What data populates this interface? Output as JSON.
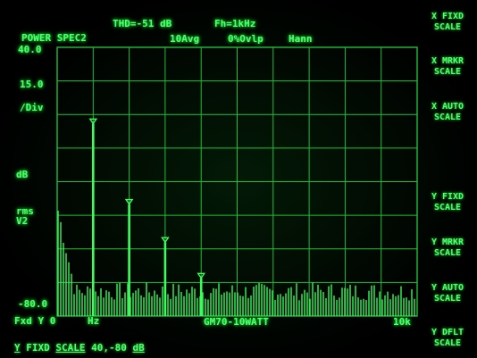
{
  "header": {
    "thd": "THD=-51 dB",
    "fh": "Fh=1kHz",
    "title": "POWER SPEC2",
    "avg": "10Avg",
    "overlap": "0%Ovlp",
    "window": "Hann"
  },
  "yaxis": {
    "top": "40.0",
    "scale_value": "15.0",
    "per_div": "/Div",
    "unit": "dB",
    "rms": "rms",
    "v2": "V2",
    "bottom": "-80.0"
  },
  "xaxis": {
    "left_label": "Fxd Y 0",
    "left_unit": "Hz",
    "center": "GM70-10WATT",
    "right": "10k"
  },
  "status": {
    "y": "Y",
    "fixd": "FIXD",
    "scale": "SCALE",
    "range": "40,-80",
    "db": "dB"
  },
  "softkeys": [
    {
      "line1": "X FIXD",
      "line2": "SCALE"
    },
    {
      "line1": "X MRKR",
      "line2": "SCALE"
    },
    {
      "line1": "X AUTO",
      "line2": "SCALE"
    },
    {
      "line1": "Y FIXD",
      "line2": "SCALE"
    },
    {
      "line1": "Y MRKR",
      "line2": "SCALE"
    },
    {
      "line1": "Y AUTO",
      "line2": "SCALE"
    },
    {
      "line1": "Y DFLT",
      "line2": "SCALE"
    }
  ],
  "colors": {
    "trace": "#3cff5c",
    "grid": "#1fbf3a",
    "background": "#000000"
  },
  "chart_data": {
    "type": "line",
    "xlim": [
      0,
      10000
    ],
    "ylim": [
      -80,
      40
    ],
    "harmonics": [
      {
        "freq": 1000,
        "level": 6
      },
      {
        "freq": 2000,
        "level": -30
      },
      {
        "freq": 3000,
        "level": -47
      },
      {
        "freq": 4000,
        "level": -63
      }
    ],
    "noise_floor": -73
  }
}
